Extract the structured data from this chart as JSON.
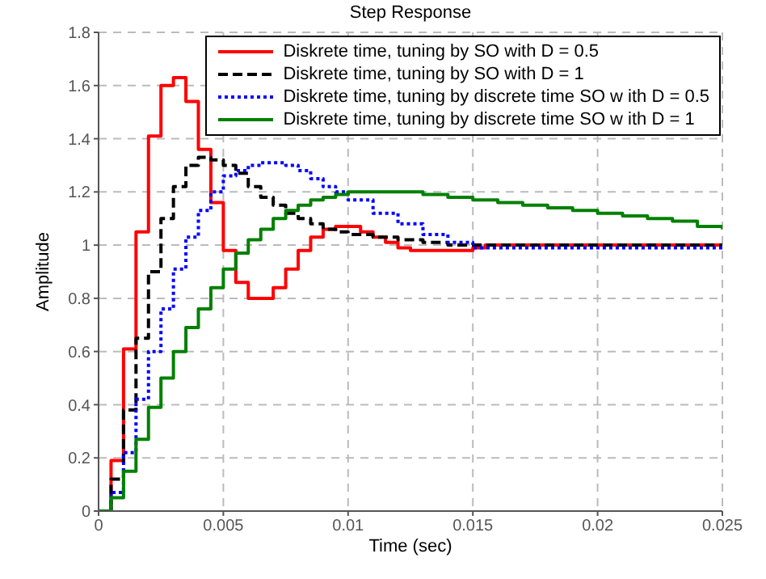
{
  "chart_data": {
    "type": "step",
    "title": "Step Response",
    "xlabel": "Time (sec)",
    "ylabel": "Amplitude",
    "xlim": [
      0,
      0.025
    ],
    "xticks": [
      0,
      0.005,
      0.01,
      0.015,
      0.02,
      0.025
    ],
    "ylim": [
      0,
      1.8
    ],
    "yticks": [
      0,
      0.2,
      0.4,
      0.6,
      0.8,
      1,
      1.2,
      1.4,
      1.6,
      1.8
    ],
    "grid": true,
    "legend": "top right",
    "series": [
      {
        "name": "Diskrete time, tuning by SO with D = 0.5",
        "color": "#ff0000",
        "line_style": "solid",
        "x": [
          0,
          0.0005,
          0.001,
          0.0015,
          0.002,
          0.0025,
          0.003,
          0.0035,
          0.004,
          0.0045,
          0.005,
          0.0055,
          0.006,
          0.0065,
          0.007,
          0.0075,
          0.008,
          0.0085,
          0.009,
          0.0095,
          0.0105,
          0.011,
          0.0115,
          0.012,
          0.0125,
          0.015,
          0.0155,
          0.025
        ],
        "values": [
          0,
          0.19,
          0.61,
          1.05,
          1.41,
          1.6,
          1.63,
          1.54,
          1.36,
          1.16,
          0.98,
          0.86,
          0.8,
          0.8,
          0.84,
          0.91,
          0.98,
          1.03,
          1.06,
          1.07,
          1.05,
          1.03,
          1.01,
          0.99,
          0.98,
          0.99,
          1.0,
          1.0
        ]
      },
      {
        "name": "Diskrete time, tuning by SO with D = 1",
        "color": "#000000",
        "line_style": "dashed",
        "x": [
          0,
          0.0005,
          0.001,
          0.0015,
          0.002,
          0.0025,
          0.003,
          0.0035,
          0.004,
          0.0045,
          0.005,
          0.0055,
          0.006,
          0.0065,
          0.007,
          0.0075,
          0.008,
          0.0085,
          0.009,
          0.0095,
          0.01,
          0.011,
          0.012,
          0.013,
          0.014,
          0.015,
          0.025
        ],
        "values": [
          0,
          0.12,
          0.38,
          0.65,
          0.9,
          1.1,
          1.22,
          1.3,
          1.33,
          1.32,
          1.3,
          1.27,
          1.22,
          1.18,
          1.15,
          1.12,
          1.1,
          1.08,
          1.06,
          1.05,
          1.04,
          1.03,
          1.02,
          1.01,
          1.0,
          1.0,
          1.0
        ]
      },
      {
        "name": "Diskrete time, tuning by discrete time SO w ith D = 0.5",
        "color": "#0000ff",
        "line_style": "dotted",
        "x": [
          0,
          0.0005,
          0.001,
          0.0015,
          0.002,
          0.0025,
          0.003,
          0.0035,
          0.004,
          0.0045,
          0.005,
          0.0055,
          0.006,
          0.0065,
          0.007,
          0.0075,
          0.008,
          0.0085,
          0.009,
          0.0095,
          0.01,
          0.011,
          0.012,
          0.013,
          0.014,
          0.015,
          0.025
        ],
        "values": [
          0,
          0.07,
          0.22,
          0.42,
          0.6,
          0.76,
          0.91,
          1.03,
          1.13,
          1.2,
          1.26,
          1.28,
          1.3,
          1.31,
          1.31,
          1.3,
          1.28,
          1.25,
          1.22,
          1.2,
          1.17,
          1.12,
          1.08,
          1.04,
          1.01,
          0.99,
          0.99
        ]
      },
      {
        "name": "Diskrete time, tuning by discrete time SO w ith D = 1",
        "color": "#008000",
        "line_style": "solid",
        "x": [
          0,
          0.0005,
          0.001,
          0.0015,
          0.002,
          0.0025,
          0.003,
          0.0035,
          0.004,
          0.0045,
          0.005,
          0.0055,
          0.006,
          0.0065,
          0.007,
          0.0075,
          0.008,
          0.0085,
          0.009,
          0.0095,
          0.01,
          0.011,
          0.012,
          0.013,
          0.014,
          0.015,
          0.016,
          0.017,
          0.018,
          0.019,
          0.02,
          0.021,
          0.022,
          0.023,
          0.024,
          0.025
        ],
        "values": [
          0,
          0.05,
          0.15,
          0.27,
          0.39,
          0.5,
          0.6,
          0.69,
          0.76,
          0.84,
          0.91,
          0.97,
          1.02,
          1.06,
          1.1,
          1.13,
          1.15,
          1.17,
          1.18,
          1.19,
          1.2,
          1.2,
          1.2,
          1.19,
          1.18,
          1.17,
          1.16,
          1.15,
          1.14,
          1.13,
          1.12,
          1.11,
          1.1,
          1.09,
          1.07,
          1.06
        ]
      }
    ]
  }
}
